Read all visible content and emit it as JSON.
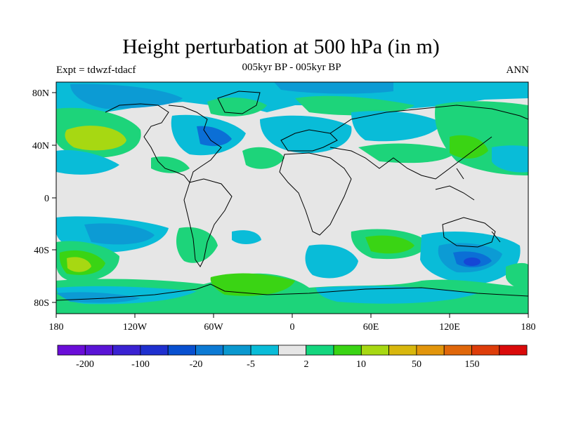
{
  "title": "Height perturbation at 500 hPa (in m)",
  "subtitle_left": "Expt = tdwzf-tdacf",
  "subtitle_center": "005kyr BP - 005kyr BP",
  "subtitle_right": "ANN",
  "axes": {
    "lon_labels": [
      "180",
      "120W",
      "60W",
      "0",
      "60E",
      "120E",
      "180"
    ],
    "lat_labels": [
      "80N",
      "40N",
      "0",
      "40S",
      "80S"
    ]
  },
  "colorbar": {
    "labels": [
      "-200",
      "-100",
      "-20",
      "-5",
      "2",
      "10",
      "50",
      "150"
    ],
    "colors": [
      "#6a0dd8",
      "#5a14d6",
      "#3a22d2",
      "#1f30cf",
      "#0850d0",
      "#0c7ad4",
      "#0a98cf",
      "#09bcd8",
      "#e6e6e6",
      "#14d67e",
      "#3ad414",
      "#a7d812",
      "#d8b70d",
      "#e2950b",
      "#e0670a",
      "#de3d0a",
      "#da0a0a"
    ]
  },
  "palette": {
    "background": "#e6e6e6",
    "light_blue": "#09bcd8",
    "mid_blue": "#0c9bd4",
    "blue": "#0b6fd6",
    "dark_blue": "#1547d6",
    "green": "#1dd47a",
    "bright_green": "#3ad414",
    "yellow_green": "#a7d812",
    "olive": "#c6c20e"
  }
}
